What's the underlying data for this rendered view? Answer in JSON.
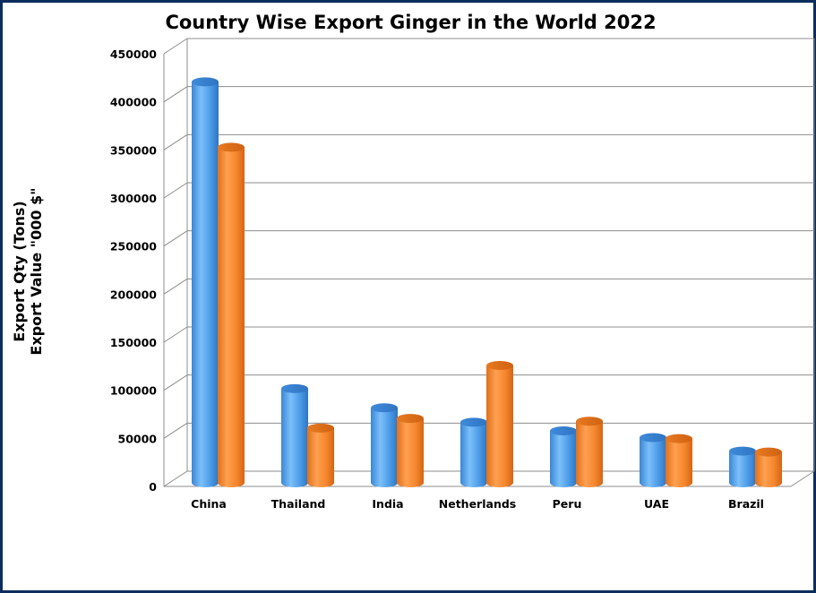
{
  "chart_data": {
    "type": "bar",
    "title": "Country Wise Export Ginger in the World 2022",
    "ylabel_lines": [
      "Export Qty (Tons)",
      "Export Value \"000 $\""
    ],
    "xlabel": "",
    "categories": [
      "China",
      "Thailand",
      "India",
      "Netherlands",
      "Peru",
      "UAE",
      "Brazil"
    ],
    "series": [
      {
        "values": [
          417000,
          98000,
          78000,
          63000,
          54000,
          47000,
          33000
        ]
      },
      {
        "values": [
          349000,
          57000,
          67000,
          122000,
          64000,
          46000,
          32000
        ]
      }
    ],
    "ylim": [
      0,
      450000
    ],
    "yticks": [
      "0",
      "50000",
      "100000",
      "150000",
      "200000",
      "250000",
      "300000",
      "350000",
      "400000",
      "450000"
    ],
    "grid": true,
    "style": "3d-cylinder",
    "colors": [
      "#5aa8ee",
      "#f58a32"
    ]
  }
}
